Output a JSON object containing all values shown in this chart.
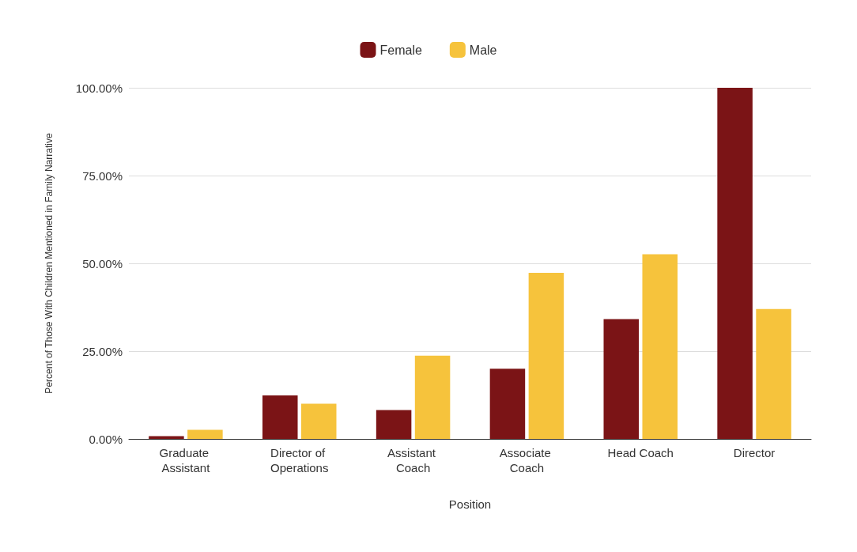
{
  "chart_data": {
    "type": "bar",
    "xlabel": "Position",
    "ylabel": "Percent of Those With Children Mentioned in Family Narrative",
    "categories": [
      "Graduate Assistant",
      "Director of Operations",
      "Assistant Coach",
      "Associate Coach",
      "Head Coach",
      "Director"
    ],
    "series": [
      {
        "name": "Female",
        "color": "#7b1416",
        "values": [
          0.8,
          12.4,
          8.2,
          20,
          34.1,
          100
        ]
      },
      {
        "name": "Male",
        "color": "#f6c33c",
        "values": [
          2.6,
          10,
          23.7,
          47.3,
          52.6,
          37
        ]
      }
    ],
    "ylim": [
      0,
      100
    ],
    "yticks": [
      {
        "value": 0,
        "label": "0.00%"
      },
      {
        "value": 25,
        "label": "25.00%"
      },
      {
        "value": 50,
        "label": "50.00%"
      },
      {
        "value": 75,
        "label": "75.00%"
      },
      {
        "value": 100,
        "label": "100.00%"
      }
    ],
    "grid": "y",
    "legend": "top"
  }
}
